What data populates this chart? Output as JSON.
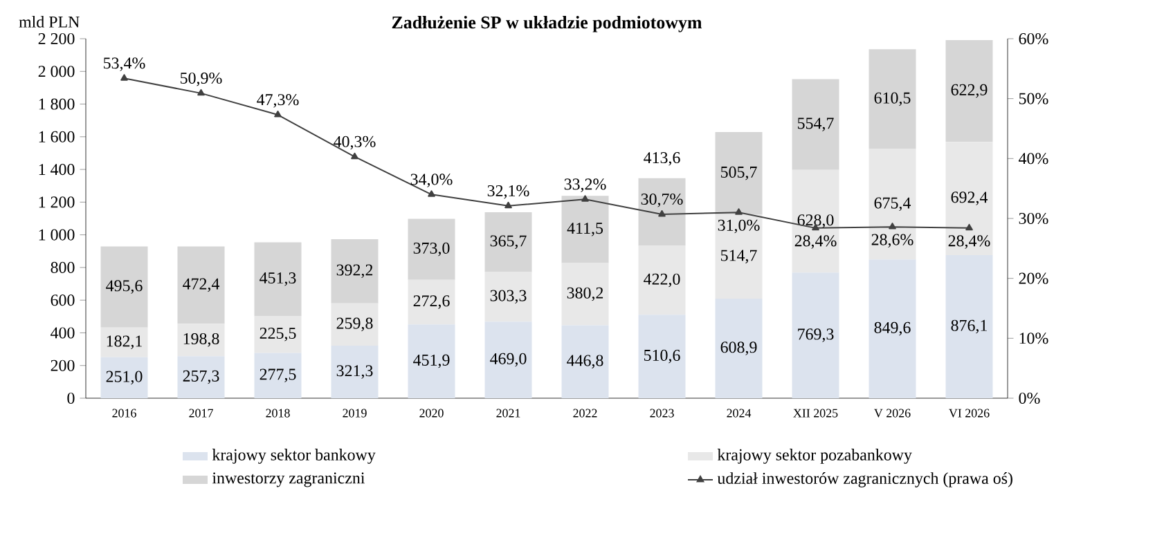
{
  "chart_data": {
    "type": "bar",
    "stacked": true,
    "title": "Zadłużenie SP w układzie podmiotowym",
    "ylabel": "mld PLN",
    "categories": [
      "2016",
      "2017",
      "2018",
      "2019",
      "2020",
      "2021",
      "2022",
      "2023",
      "2024",
      "XII 2025",
      "V 2026",
      "VI 2026"
    ],
    "series": [
      {
        "name": "krajowy sektor bankowy",
        "color": "#dce3ee",
        "values": [
          251.0,
          257.3,
          277.5,
          321.3,
          451.9,
          469.0,
          446.8,
          510.6,
          608.9,
          769.3,
          849.6,
          876.1
        ],
        "value_labels": [
          "251,0",
          "257,3",
          "277,5",
          "321,3",
          "451,9",
          "469,0",
          "446,8",
          "510,6",
          "608,9",
          "769,3",
          "849,6",
          "876,1"
        ]
      },
      {
        "name": "krajowy sektor pozabankowy",
        "color": "#e8e8e8",
        "values": [
          182.1,
          198.8,
          225.5,
          259.8,
          272.6,
          303.3,
          380.2,
          422.0,
          514.7,
          628.0,
          675.4,
          692.4
        ],
        "value_labels": [
          "182,1",
          "198,8",
          "225,5",
          "259,8",
          "272,6",
          "303,3",
          "380,2",
          "422,0",
          "514,7",
          "628,0",
          "675,4",
          "692,4"
        ]
      },
      {
        "name": "inwestorzy zagraniczni",
        "color": "#d6d6d6",
        "values": [
          495.6,
          472.4,
          451.3,
          392.2,
          373.0,
          365.7,
          411.5,
          413.6,
          505.7,
          554.7,
          610.5,
          622.9
        ],
        "value_labels": [
          "495,6",
          "472,4",
          "451,3",
          "392,2",
          "373,0",
          "365,7",
          "411,5",
          "413,6",
          "505,7",
          "554,7",
          "610,5",
          "622,9"
        ]
      },
      {
        "name": "udział inwestorów zagranicznych (prawa oś)",
        "type": "line",
        "axis": "y2",
        "color": "#404040",
        "marker": "triangle",
        "values": [
          53.4,
          50.9,
          47.3,
          40.3,
          34.0,
          32.1,
          33.2,
          30.7,
          31.0,
          28.4,
          28.6,
          28.4
        ],
        "value_labels": [
          "53,4%",
          "50,9%",
          "47,3%",
          "40,3%",
          "34,0%",
          "32,1%",
          "33,2%",
          "30,7%",
          "31,0%",
          "28,4%",
          "28,6%",
          "28,4%"
        ]
      }
    ],
    "ylim": [
      0,
      2200
    ],
    "yticks": [
      {
        "value": 0,
        "label": "0"
      },
      {
        "value": 200,
        "label": "200"
      },
      {
        "value": 400,
        "label": "400"
      },
      {
        "value": 600,
        "label": "600"
      },
      {
        "value": 800,
        "label": "800"
      },
      {
        "value": 1000,
        "label": "1 000"
      },
      {
        "value": 1200,
        "label": "1 200"
      },
      {
        "value": 1400,
        "label": "1 400"
      },
      {
        "value": 1600,
        "label": "1 600"
      },
      {
        "value": 1800,
        "label": "1 800"
      },
      {
        "value": 2000,
        "label": "2 000"
      },
      {
        "value": 2200,
        "label": "2 200"
      }
    ],
    "y2lim": [
      0,
      60
    ],
    "y2ticks": [
      {
        "value": 0,
        "label": "0%"
      },
      {
        "value": 10,
        "label": "10%"
      },
      {
        "value": 20,
        "label": "20%"
      },
      {
        "value": 30,
        "label": "30%"
      },
      {
        "value": 40,
        "label": "40%"
      },
      {
        "value": 50,
        "label": "50%"
      },
      {
        "value": 60,
        "label": "60%"
      }
    ],
    "legend": "bottom",
    "grid": false
  }
}
